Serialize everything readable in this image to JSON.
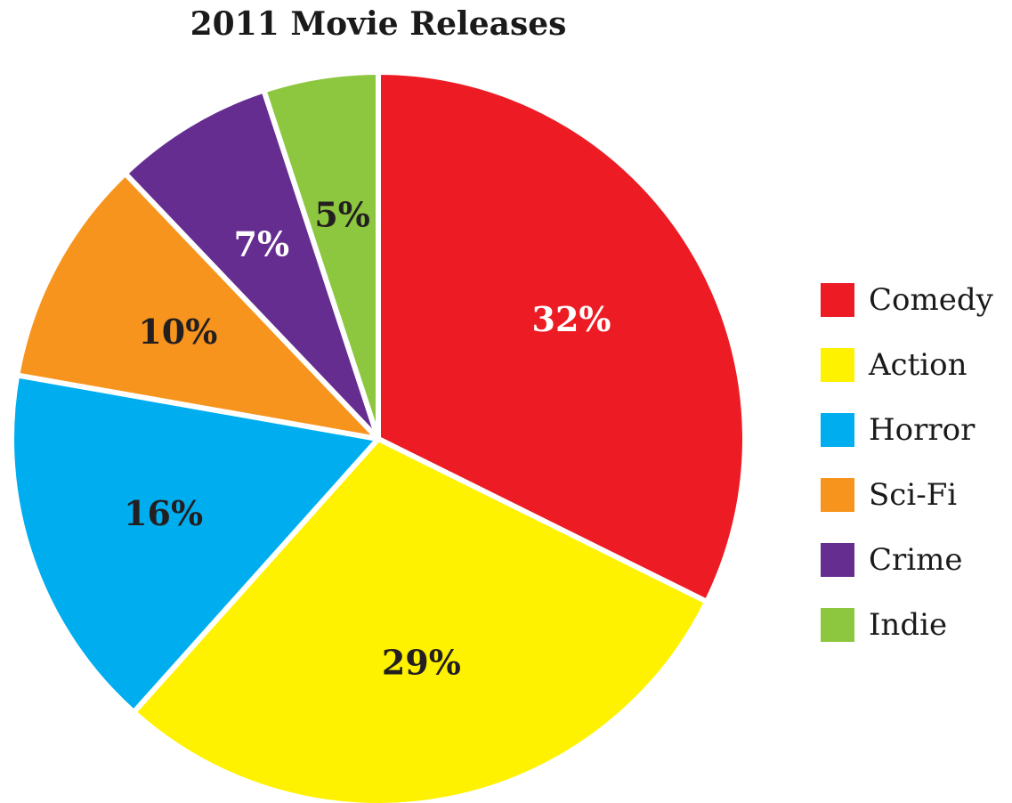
{
  "chart_data": {
    "type": "pie",
    "title": "2011 Movie Releases",
    "slices": [
      {
        "label": "Comedy",
        "value": 32,
        "value_label": "32%",
        "color": "#ED1C24",
        "label_color": "#ffffff"
      },
      {
        "label": "Action",
        "value": 29,
        "value_label": "29%",
        "color": "#FFF200",
        "label_color": "#231F20"
      },
      {
        "label": "Horror",
        "value": 16,
        "value_label": "16%",
        "color": "#00AEEF",
        "label_color": "#231F20"
      },
      {
        "label": "Sci-Fi",
        "value": 10,
        "value_label": "10%",
        "color": "#F7941D",
        "label_color": "#231F20"
      },
      {
        "label": "Crime",
        "value": 7,
        "value_label": "7%",
        "color": "#662D91",
        "label_color": "#ffffff"
      },
      {
        "label": "Indie",
        "value": 5,
        "value_label": "5%",
        "color": "#8DC63F",
        "label_color": "#231F20"
      }
    ],
    "legend_position": "right",
    "start_angle_deg": 0,
    "direction": "clockwise"
  }
}
